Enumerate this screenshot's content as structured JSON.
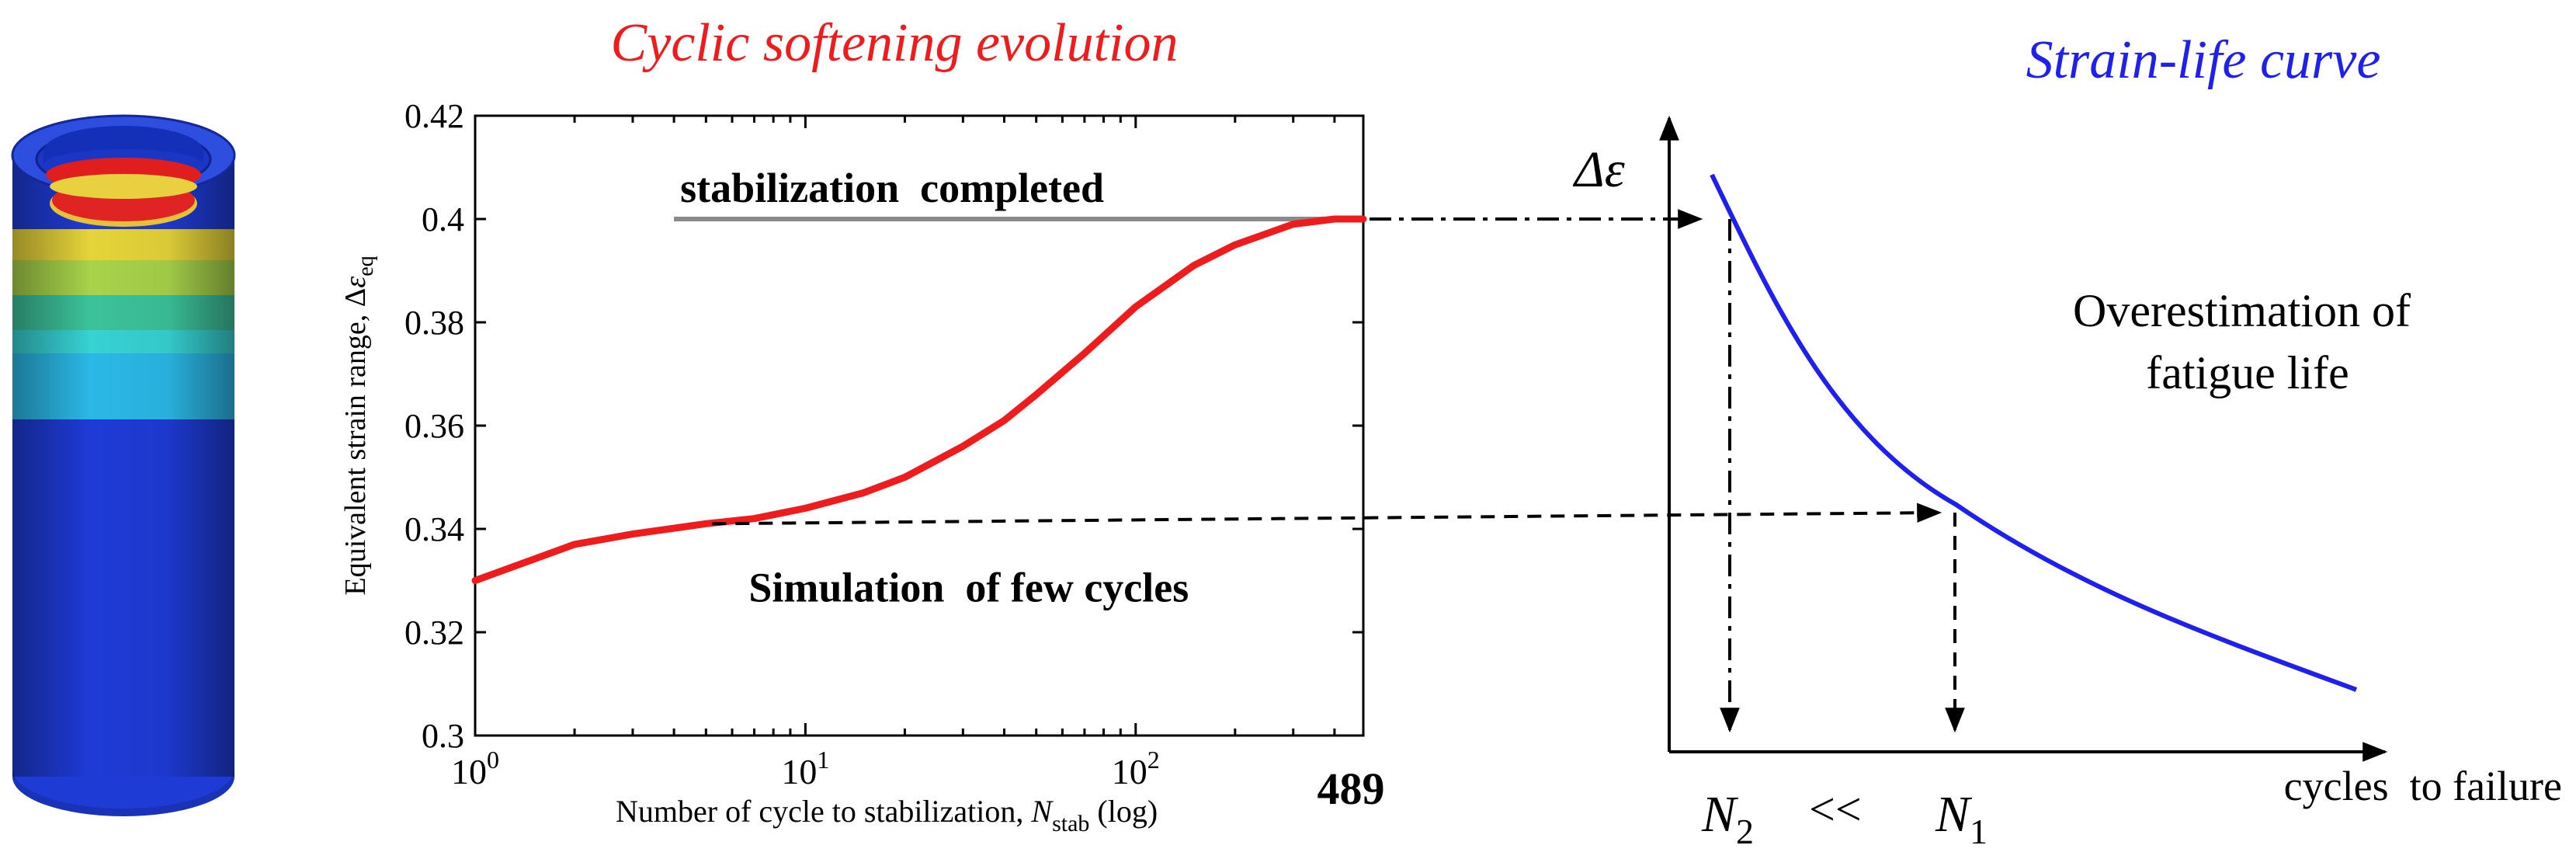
{
  "titles": {
    "left": "Cyclic softening evolution",
    "right": "Strain-life curve"
  },
  "colors": {
    "softening_curve": "#ee1c1c",
    "strain_life_curve": "#1f1fee",
    "left_title": "#ee1c1c",
    "right_title": "#1f1fee",
    "stabilization_line": "#8a8a8a",
    "cylinder_body": "#1e3bd6"
  },
  "chart_data": [
    {
      "type": "line",
      "title": "Cyclic softening evolution",
      "xlabel": {
        "main": "Number of cycle to stabilization, ",
        "var": "N",
        "sub": "stab",
        "suffix": " (log)"
      },
      "ylabel": {
        "main": "Equivalent strain range, Δ",
        "var": "ε",
        "sub": "eq"
      },
      "x_scale": "log",
      "xlim": [
        1,
        489
      ],
      "ylim": [
        0.3,
        0.42
      ],
      "y_ticks": [
        "0.3",
        "0.32",
        "0.34",
        "0.36",
        "0.38",
        "0.4",
        "0.42"
      ],
      "y_tick_values": [
        0.3,
        0.32,
        0.34,
        0.36,
        0.38,
        0.4,
        0.42
      ],
      "x_ticks": [
        {
          "base": "10",
          "exp": "0",
          "value": 1
        },
        {
          "base": "10",
          "exp": "1",
          "value": 10
        },
        {
          "base": "10",
          "exp": "2",
          "value": 100
        }
      ],
      "x_end_label": "489",
      "series": [
        {
          "x": [
            1,
            2,
            3,
            5,
            7,
            10,
            15,
            20,
            30,
            40,
            50,
            70,
            100,
            150,
            200,
            300,
            400,
            489
          ],
          "values": [
            0.33,
            0.337,
            0.339,
            0.341,
            0.342,
            0.344,
            0.347,
            0.35,
            0.356,
            0.361,
            0.366,
            0.374,
            0.383,
            0.391,
            0.395,
            0.399,
            0.4,
            0.4
          ]
        }
      ],
      "annotations": {
        "stabilization": {
          "text": "stabilization  completed",
          "y": 0.4,
          "x_from": 4,
          "x_to": 489
        },
        "few_cycles": {
          "text": "Simulation  of few cycles",
          "y": 0.341,
          "x": 5
        }
      }
    },
    {
      "type": "line",
      "title": "Strain-life curve",
      "y_axis_label": "Δε",
      "x_axis_label": "cycles  to failure",
      "axis_ticks": "none",
      "annotation": [
        "Overestimation of",
        "fatigue life"
      ],
      "x_labels": {
        "n2": {
          "var": "N",
          "sub": "2"
        },
        "n1": {
          "var": "N",
          "sub": "1"
        },
        "relation": "<<"
      }
    }
  ]
}
